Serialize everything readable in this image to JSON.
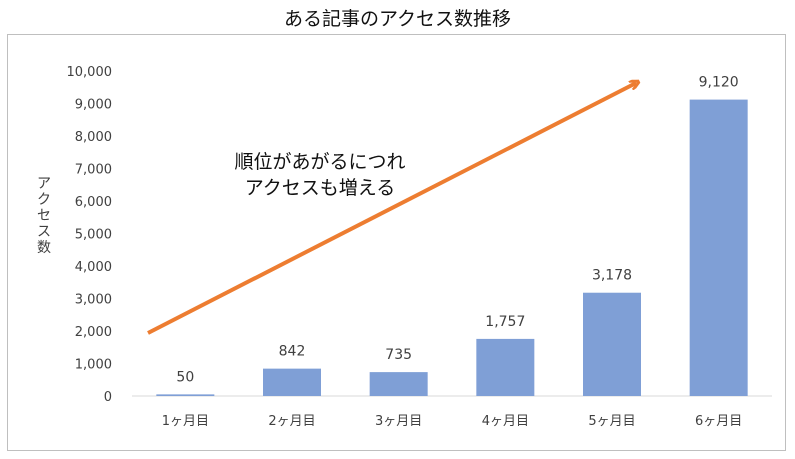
{
  "chart_data": {
    "type": "bar",
    "title": "ある記事のアクセス数推移",
    "ylabel": "アクセス数",
    "xlabel": "",
    "categories": [
      "1ヶ月目",
      "2ヶ月目",
      "3ヶ月目",
      "4ヶ月目",
      "5ヶ月目",
      "6ヶ月目"
    ],
    "values": [
      50,
      842,
      735,
      1757,
      3178,
      9120
    ],
    "data_labels": [
      "50",
      "842",
      "735",
      "1,757",
      "3,178",
      "9,120"
    ],
    "ylim": [
      0,
      10000
    ],
    "yticks": [
      0,
      1000,
      2000,
      3000,
      4000,
      5000,
      6000,
      7000,
      8000,
      9000,
      10000
    ],
    "ytick_labels": [
      "0",
      "1,000",
      "2,000",
      "3,000",
      "4,000",
      "5,000",
      "6,000",
      "7,000",
      "8,000",
      "9,000",
      "10,000"
    ],
    "grid": false,
    "legend": "none",
    "bar_color": "#7f9fd6",
    "annotation": {
      "lines": [
        "順位があがるにつれ",
        "アクセスも増える"
      ],
      "arrow_color": "#ed7d31"
    }
  }
}
